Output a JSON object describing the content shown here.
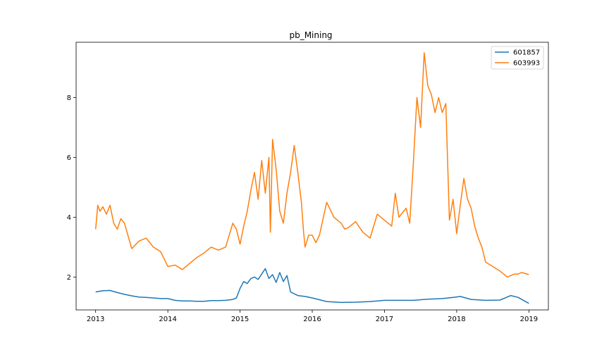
{
  "chart_data": {
    "type": "line",
    "title": "pb_Mining",
    "xlabel": "",
    "ylabel": "",
    "xlim": [
      2012.73,
      2019.27
    ],
    "ylim": [
      0.9,
      9.85
    ],
    "xticks": [
      2013,
      2014,
      2015,
      2016,
      2017,
      2018,
      2019
    ],
    "xtick_labels": [
      "2013",
      "2014",
      "2015",
      "2016",
      "2017",
      "2018",
      "2019"
    ],
    "yticks": [
      2,
      4,
      6,
      8
    ],
    "ytick_labels": [
      "2",
      "4",
      "6",
      "8"
    ],
    "grid": false,
    "legend_position": "top-right",
    "series": [
      {
        "name": "601857",
        "color": "#1f77b4",
        "x": [
          2013.0,
          2013.1,
          2013.2,
          2013.3,
          2013.4,
          2013.5,
          2013.6,
          2013.7,
          2013.8,
          2013.9,
          2014.0,
          2014.1,
          2014.2,
          2014.3,
          2014.4,
          2014.5,
          2014.6,
          2014.7,
          2014.8,
          2014.9,
          2014.95,
          2015.0,
          2015.05,
          2015.1,
          2015.15,
          2015.2,
          2015.25,
          2015.3,
          2015.35,
          2015.4,
          2015.45,
          2015.5,
          2015.55,
          2015.6,
          2015.65,
          2015.7,
          2015.8,
          2015.9,
          2016.0,
          2016.2,
          2016.4,
          2016.6,
          2016.8,
          2017.0,
          2017.2,
          2017.4,
          2017.6,
          2017.8,
          2017.95,
          2018.05,
          2018.2,
          2018.4,
          2018.6,
          2018.75,
          2018.85,
          2019.0
        ],
        "values": [
          1.5,
          1.54,
          1.55,
          1.48,
          1.42,
          1.37,
          1.33,
          1.32,
          1.3,
          1.28,
          1.28,
          1.22,
          1.2,
          1.2,
          1.19,
          1.19,
          1.21,
          1.21,
          1.22,
          1.25,
          1.3,
          1.62,
          1.85,
          1.78,
          1.95,
          2.0,
          1.92,
          2.1,
          2.28,
          1.95,
          2.08,
          1.82,
          2.15,
          1.85,
          2.05,
          1.5,
          1.38,
          1.35,
          1.3,
          1.18,
          1.15,
          1.16,
          1.18,
          1.22,
          1.22,
          1.22,
          1.26,
          1.28,
          1.32,
          1.35,
          1.25,
          1.22,
          1.23,
          1.38,
          1.32,
          1.12
        ]
      },
      {
        "name": "603993",
        "color": "#ff7f0e",
        "x": [
          2013.0,
          2013.03,
          2013.06,
          2013.1,
          2013.15,
          2013.2,
          2013.25,
          2013.3,
          2013.35,
          2013.4,
          2013.5,
          2013.6,
          2013.7,
          2013.8,
          2013.9,
          2014.0,
          2014.1,
          2014.2,
          2014.3,
          2014.4,
          2014.5,
          2014.6,
          2014.7,
          2014.8,
          2014.9,
          2014.95,
          2015.0,
          2015.05,
          2015.1,
          2015.15,
          2015.2,
          2015.25,
          2015.3,
          2015.35,
          2015.4,
          2015.42,
          2015.45,
          2015.5,
          2015.55,
          2015.6,
          2015.65,
          2015.7,
          2015.75,
          2015.8,
          2015.85,
          2015.88,
          2015.9,
          2015.95,
          2016.0,
          2016.05,
          2016.1,
          2016.2,
          2016.3,
          2016.4,
          2016.45,
          2016.5,
          2016.6,
          2016.7,
          2016.8,
          2016.9,
          2017.0,
          2017.1,
          2017.15,
          2017.2,
          2017.3,
          2017.35,
          2017.4,
          2017.45,
          2017.5,
          2017.55,
          2017.6,
          2017.65,
          2017.7,
          2017.75,
          2017.8,
          2017.85,
          2017.9,
          2017.95,
          2018.0,
          2018.05,
          2018.1,
          2018.15,
          2018.2,
          2018.25,
          2018.3,
          2018.35,
          2018.4,
          2018.5,
          2018.6,
          2018.7,
          2018.75,
          2018.8,
          2018.85,
          2018.9,
          2019.0
        ],
        "values": [
          3.6,
          4.4,
          4.2,
          4.35,
          4.1,
          4.4,
          3.8,
          3.6,
          3.95,
          3.8,
          2.95,
          3.2,
          3.3,
          3.0,
          2.85,
          2.35,
          2.4,
          2.25,
          2.45,
          2.65,
          2.8,
          3.0,
          2.9,
          3.0,
          3.8,
          3.6,
          3.1,
          3.7,
          4.2,
          4.9,
          5.5,
          4.6,
          5.9,
          4.8,
          6.0,
          3.5,
          6.6,
          5.6,
          4.2,
          3.8,
          4.8,
          5.5,
          6.4,
          5.5,
          4.5,
          3.5,
          3.0,
          3.4,
          3.4,
          3.15,
          3.4,
          4.5,
          4.0,
          3.8,
          3.6,
          3.65,
          3.85,
          3.5,
          3.3,
          4.1,
          3.9,
          3.7,
          4.8,
          4.0,
          4.3,
          3.8,
          5.8,
          8.0,
          7.0,
          9.5,
          8.4,
          8.1,
          7.5,
          8.0,
          7.5,
          7.8,
          3.9,
          4.6,
          3.45,
          4.4,
          5.3,
          4.6,
          4.3,
          3.7,
          3.3,
          3.0,
          2.5,
          2.35,
          2.2,
          2.0,
          2.05,
          2.1,
          2.1,
          2.15,
          2.08
        ]
      }
    ]
  }
}
